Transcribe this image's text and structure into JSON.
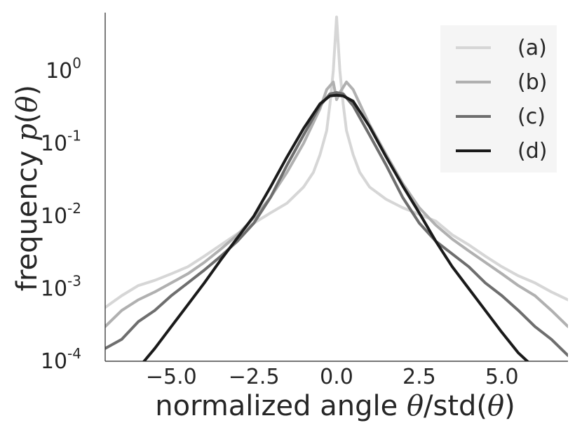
{
  "chart_data": {
    "type": "line",
    "title": "",
    "xlabel": {
      "prefix": "normalized angle ",
      "theta": "θ",
      "mid": "/std(",
      "theta2": "θ",
      "suffix": ")"
    },
    "ylabel": {
      "prefix": "frequency ",
      "func": "p",
      "open": "(",
      "theta": "θ",
      "close": ")"
    },
    "xlim": [
      -7,
      7
    ],
    "ylim_log10": [
      -4,
      0.8
    ],
    "y_scale": "log",
    "grid": false,
    "legend_position": "top-right",
    "x_ticks": [
      {
        "value": -5.0,
        "label": "−5.0"
      },
      {
        "value": -2.5,
        "label": "−2.5"
      },
      {
        "value": 0.0,
        "label": "0.0"
      },
      {
        "value": 2.5,
        "label": "2.5"
      },
      {
        "value": 5.0,
        "label": "5.0"
      }
    ],
    "y_ticks": [
      {
        "exp": 0,
        "base": "10",
        "sup": "0"
      },
      {
        "exp": -1,
        "base": "10",
        "sup": "-1"
      },
      {
        "exp": -2,
        "base": "10",
        "sup": "-2"
      },
      {
        "exp": -3,
        "base": "10",
        "sup": "-3"
      },
      {
        "exp": -4,
        "base": "10",
        "sup": "-4"
      }
    ],
    "series": [
      {
        "name": "(a)",
        "color": "#d6d6d6",
        "x": [
          -7.0,
          -6.5,
          -6.0,
          -5.5,
          -5.0,
          -4.5,
          -4.0,
          -3.5,
          -3.0,
          -2.5,
          -2.0,
          -1.5,
          -1.0,
          -0.7,
          -0.5,
          -0.3,
          -0.2,
          -0.1,
          0.0,
          0.1,
          0.2,
          0.3,
          0.5,
          0.7,
          1.0,
          1.5,
          2.0,
          2.5,
          3.0,
          3.5,
          4.0,
          4.5,
          5.0,
          5.5,
          6.0,
          6.5,
          7.0
        ],
        "y": [
          0.00055,
          0.0008,
          0.0011,
          0.0013,
          0.0016,
          0.002,
          0.0028,
          0.004,
          0.0057,
          0.008,
          0.011,
          0.015,
          0.025,
          0.04,
          0.07,
          0.15,
          0.35,
          1.0,
          5.5,
          1.0,
          0.35,
          0.15,
          0.07,
          0.04,
          0.025,
          0.017,
          0.013,
          0.0105,
          0.0085,
          0.0055,
          0.004,
          0.0028,
          0.002,
          0.0015,
          0.0012,
          0.0009,
          0.0007
        ]
      },
      {
        "name": "(b)",
        "color": "#b0b0b0",
        "x": [
          -7.0,
          -6.5,
          -6.0,
          -5.5,
          -5.0,
          -4.5,
          -4.0,
          -3.5,
          -3.0,
          -2.5,
          -2.0,
          -1.5,
          -1.0,
          -0.5,
          -0.3,
          -0.1,
          0.0,
          0.1,
          0.3,
          0.5,
          1.0,
          1.5,
          2.0,
          2.5,
          3.0,
          3.5,
          4.0,
          4.5,
          5.0,
          5.5,
          6.0,
          6.5,
          7.0
        ],
        "y": [
          0.0003,
          0.0005,
          0.0007,
          0.0009,
          0.0012,
          0.0016,
          0.0023,
          0.0035,
          0.0055,
          0.0095,
          0.018,
          0.04,
          0.1,
          0.3,
          0.55,
          0.7,
          0.4,
          0.5,
          0.7,
          0.55,
          0.18,
          0.07,
          0.028,
          0.013,
          0.0075,
          0.0048,
          0.0033,
          0.0023,
          0.0016,
          0.0011,
          0.0008,
          0.0005,
          0.0003
        ]
      },
      {
        "name": "(c)",
        "color": "#6e6e6e",
        "x": [
          -7.0,
          -6.5,
          -6.0,
          -5.5,
          -5.0,
          -4.5,
          -4.0,
          -3.5,
          -3.0,
          -2.5,
          -2.0,
          -1.5,
          -1.0,
          -0.5,
          -0.2,
          0.0,
          0.2,
          0.5,
          1.0,
          1.5,
          2.0,
          2.5,
          3.0,
          3.5,
          4.0,
          4.5,
          5.0,
          5.5,
          6.0,
          6.5,
          7.0
        ],
        "y": [
          0.00015,
          0.0002,
          0.00035,
          0.0005,
          0.0008,
          0.0012,
          0.0018,
          0.0028,
          0.0045,
          0.008,
          0.018,
          0.05,
          0.13,
          0.33,
          0.48,
          0.5,
          0.48,
          0.33,
          0.13,
          0.05,
          0.018,
          0.008,
          0.0045,
          0.003,
          0.002,
          0.0012,
          0.0008,
          0.0005,
          0.0003,
          0.0002,
          0.00012
        ]
      },
      {
        "name": "(d)",
        "color": "#1a1a1a",
        "x": [
          -6.0,
          -5.5,
          -5.0,
          -4.5,
          -4.0,
          -3.5,
          -3.0,
          -2.5,
          -2.0,
          -1.5,
          -1.0,
          -0.5,
          -0.2,
          0.0,
          0.2,
          0.5,
          1.0,
          1.5,
          2.0,
          2.5,
          3.0,
          3.5,
          4.0,
          4.5,
          5.0,
          5.5,
          6.0,
          6.5
        ],
        "y": [
          8e-05,
          0.00015,
          0.0003,
          0.0006,
          0.0012,
          0.0025,
          0.005,
          0.01,
          0.025,
          0.065,
          0.16,
          0.35,
          0.45,
          0.46,
          0.45,
          0.38,
          0.17,
          0.065,
          0.026,
          0.011,
          0.0045,
          0.002,
          0.001,
          0.0005,
          0.00025,
          0.00013,
          8e-05,
          5e-05
        ]
      }
    ]
  }
}
